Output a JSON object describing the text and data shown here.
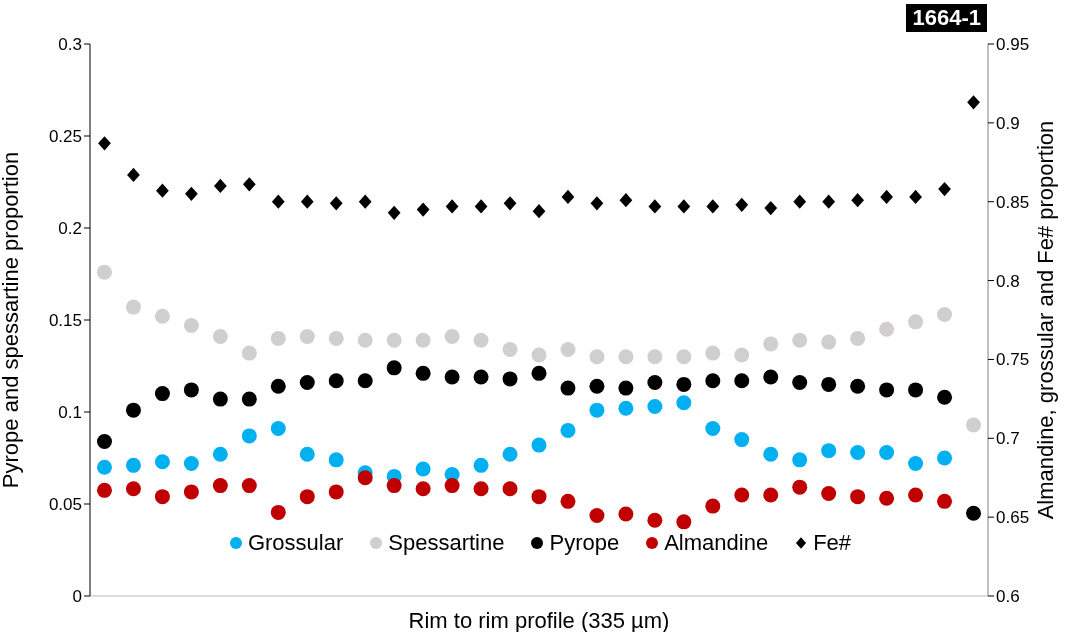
{
  "chart_data": {
    "type": "scatter",
    "xlabel": "Rim to rim profile (335 µm)",
    "ylabel": "Pyrope and spessartine proportion",
    "y2label": "Almandine, grossular and Fe# proportion",
    "annotations": [
      "1664-1"
    ],
    "categories": [
      null,
      null,
      null,
      null,
      null,
      null,
      null,
      null,
      null,
      null,
      null,
      null,
      null,
      null,
      null,
      null,
      null,
      null,
      null,
      null,
      null,
      null,
      null,
      null,
      null,
      null,
      null,
      null,
      null,
      null,
      null
    ],
    "ylim": [
      0,
      0.3
    ],
    "yticks": [
      0,
      0.05,
      0.1,
      0.15,
      0.2,
      0.25,
      0.3
    ],
    "y2lim": [
      0.6,
      0.95
    ],
    "y2ticks": [
      0.6,
      0.65,
      0.7,
      0.75,
      0.8,
      0.85,
      0.9,
      0.95
    ],
    "legend": "bottom",
    "grid": false,
    "series": [
      {
        "name": "Grossular",
        "color": "#00b0f0",
        "marker": "circle",
        "values": [
          0.07,
          0.071,
          0.073,
          0.072,
          0.077,
          0.087,
          0.091,
          0.077,
          0.074,
          0.067,
          0.065,
          0.069,
          0.066,
          0.071,
          0.077,
          0.082,
          0.09,
          0.101,
          0.102,
          0.103,
          0.105,
          0.091,
          0.085,
          0.077,
          0.074,
          0.079,
          0.078,
          0.078,
          0.072,
          0.075,
          null
        ]
      },
      {
        "name": "Spessartine",
        "color": "#d0cece",
        "marker": "circle",
        "values": [
          0.176,
          0.157,
          0.152,
          0.147,
          0.141,
          0.132,
          0.14,
          0.141,
          0.14,
          0.139,
          0.139,
          0.139,
          0.141,
          0.139,
          0.134,
          0.131,
          0.134,
          0.13,
          0.13,
          0.13,
          0.13,
          0.132,
          0.131,
          0.137,
          0.139,
          0.138,
          0.14,
          0.145,
          0.149,
          0.153,
          0.093
        ]
      },
      {
        "name": "Pyrope",
        "color": "#000000",
        "marker": "circle",
        "values": [
          0.084,
          0.101,
          0.11,
          0.112,
          0.107,
          0.107,
          0.114,
          0.116,
          0.117,
          0.117,
          0.124,
          0.121,
          0.119,
          0.119,
          0.118,
          0.121,
          0.113,
          0.114,
          0.113,
          0.116,
          0.115,
          0.117,
          0.117,
          0.119,
          0.116,
          0.115,
          0.114,
          0.112,
          0.112,
          0.108,
          0.045
        ]
      },
      {
        "name": "Almandine",
        "color": "#c00000",
        "marker": "circle",
        "axis": "y2",
        "values": [
          0.667,
          0.668,
          0.663,
          0.666,
          0.67,
          0.67,
          0.653,
          0.663,
          0.666,
          0.675,
          0.67,
          0.668,
          0.67,
          0.668,
          0.668,
          0.663,
          0.66,
          0.651,
          0.652,
          0.648,
          0.647,
          0.657,
          0.664,
          0.664,
          0.669,
          0.665,
          0.663,
          0.662,
          0.664,
          0.66,
          null
        ]
      },
      {
        "name": "Fe#",
        "color": "#000000",
        "marker": "diamond",
        "axis": "y2",
        "values": [
          0.887,
          0.867,
          0.857,
          0.855,
          0.86,
          0.861,
          0.85,
          0.85,
          0.849,
          0.85,
          0.843,
          0.845,
          0.847,
          0.847,
          0.849,
          0.844,
          0.853,
          0.849,
          0.851,
          0.847,
          0.847,
          0.847,
          0.848,
          0.846,
          0.85,
          0.85,
          0.851,
          0.853,
          0.853,
          0.858,
          0.913
        ]
      }
    ]
  }
}
